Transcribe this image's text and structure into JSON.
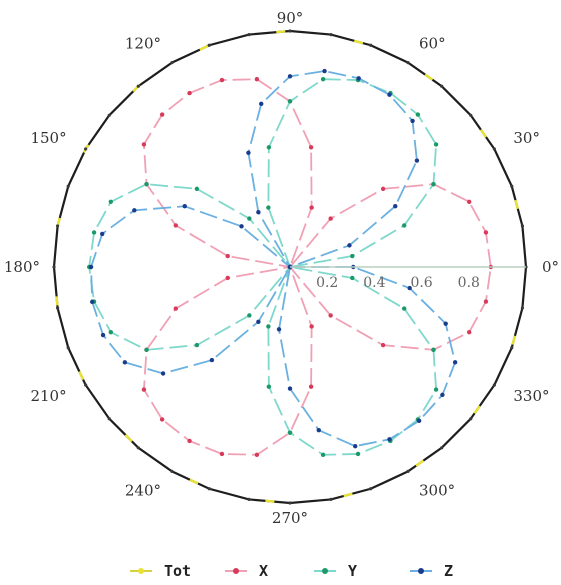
{
  "chart_data": {
    "type": "polar-line",
    "angle_ticks": [
      "0°",
      "30°",
      "60°",
      "90°",
      "120°",
      "150°",
      "180°",
      "210°",
      "240°",
      "270°",
      "300°",
      "330°"
    ],
    "radial_ticks": [
      "0.2",
      "0.4",
      "0.6",
      "0.8"
    ],
    "radial_tick_values": [
      0.2,
      0.4,
      0.6,
      0.8
    ],
    "rlim": [
      0,
      1
    ],
    "angle_step_deg": 10,
    "series": [
      {
        "name": "Tot",
        "color": "#e8e233",
        "values": [
          1,
          1,
          1,
          1,
          1,
          1,
          1,
          1,
          1,
          1,
          1,
          1,
          1,
          1,
          1,
          1,
          1,
          1,
          1,
          1,
          1,
          1,
          1,
          1,
          1,
          1,
          1,
          1,
          1,
          1,
          1,
          1,
          1,
          1,
          1,
          1
        ]
      },
      {
        "name": "X",
        "color": "#d83a5a",
        "line_color": "#f0a0b4",
        "values": [
          0.851,
          0.843,
          0.808,
          0.702,
          0.515,
          0.268,
          0.0,
          0.268,
          0.515,
          0.702,
          0.808,
          0.843,
          0.851,
          0.843,
          0.808,
          0.702,
          0.515,
          0.268,
          0.0,
          0.268,
          0.515,
          0.702,
          0.808,
          0.843,
          0.851,
          0.843,
          0.808,
          0.702,
          0.515,
          0.268,
          0.0,
          0.268,
          0.515,
          0.702,
          0.808,
          0.843
        ]
      },
      {
        "name": "Y",
        "color": "#1a9a68",
        "line_color": "#7fd8cc",
        "values": [
          0.0,
          0.268,
          0.515,
          0.702,
          0.808,
          0.843,
          0.851,
          0.843,
          0.808,
          0.702,
          0.515,
          0.268,
          0.0,
          0.268,
          0.515,
          0.702,
          0.808,
          0.843,
          0.851,
          0.843,
          0.808,
          0.702,
          0.515,
          0.268,
          0.0,
          0.268,
          0.515,
          0.702,
          0.808,
          0.843,
          0.851,
          0.843,
          0.808,
          0.702,
          0.515,
          0.268
        ]
      },
      {
        "name": "Z",
        "color": "#1a3c8c",
        "line_color": "#6ab0e0",
        "values": [
          0.268,
          0.0,
          0.268,
          0.515,
          0.702,
          0.808,
          0.843,
          0.851,
          0.843,
          0.808,
          0.702,
          0.515,
          0.268,
          0.0,
          0.268,
          0.515,
          0.702,
          0.808,
          0.843,
          0.851,
          0.843,
          0.808,
          0.702,
          0.515,
          0.268,
          0.0,
          0.268,
          0.515,
          0.702,
          0.808,
          0.843,
          0.851,
          0.843,
          0.808,
          0.702,
          0.515
        ]
      }
    ],
    "legend_position": "bottom",
    "grid": false
  }
}
